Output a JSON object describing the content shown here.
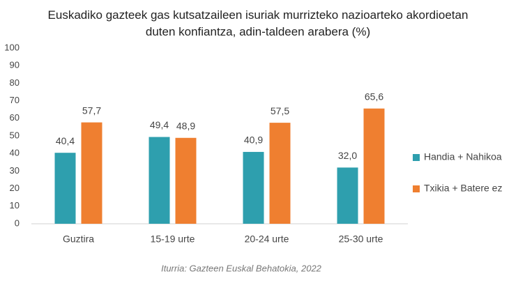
{
  "chart_data": {
    "type": "bar",
    "title": "Euskadiko gazteek gas kutsatzaileen isuriak murrizteko nazioarteko akordioetan duten konfiantza, adin-taldeen arabera (%)",
    "categories": [
      "Guztira",
      "15-19 urte",
      "20-24 urte",
      "25-30 urte"
    ],
    "series": [
      {
        "name": "Handia + Nahikoa",
        "color": "#2e9fae",
        "values": [
          40.4,
          49.4,
          40.9,
          32.0
        ],
        "value_labels": [
          "40,4",
          "49,4",
          "40,9",
          "32,0"
        ]
      },
      {
        "name": "Txikia + Batere ez",
        "color": "#ef7f30",
        "values": [
          57.7,
          48.9,
          57.5,
          65.6
        ],
        "value_labels": [
          "57,7",
          "48,9",
          "57,5",
          "65,6"
        ]
      }
    ],
    "ylim": [
      0,
      100
    ],
    "yticks": [
      0,
      10,
      20,
      30,
      40,
      50,
      60,
      70,
      80,
      90,
      100
    ],
    "grid": false,
    "legend": "right",
    "source": "Iturria: Gazteen Euskal Behatokia, 2022"
  }
}
